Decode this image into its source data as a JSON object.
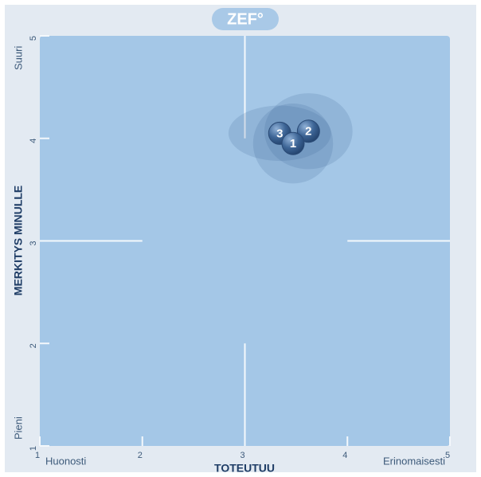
{
  "chart_data": {
    "type": "scatter",
    "logo": "ZEF°",
    "x_label": "TOTEUTUU",
    "y_label": "MERKITYS MINULLE",
    "x_low": "Huonosti",
    "x_high": "Erinomaisesti",
    "y_low": "Pieni",
    "y_high": "Suuri",
    "xlim": [
      1,
      5
    ],
    "ylim": [
      1,
      5
    ],
    "xticks": [
      1,
      2,
      3,
      4,
      5
    ],
    "yticks": [
      1,
      2,
      3,
      4,
      5
    ],
    "color": "#3d6596",
    "points": [
      {
        "label": "3",
        "x": 3.34,
        "y": 4.05,
        "spread_x": 0.5,
        "spread_y": 0.27
      },
      {
        "label": "2",
        "x": 3.62,
        "y": 4.07,
        "spread_x": 0.43,
        "spread_y": 0.37
      },
      {
        "label": "1",
        "x": 3.47,
        "y": 3.95,
        "spread_x": 0.39,
        "spread_y": 0.39
      }
    ]
  }
}
